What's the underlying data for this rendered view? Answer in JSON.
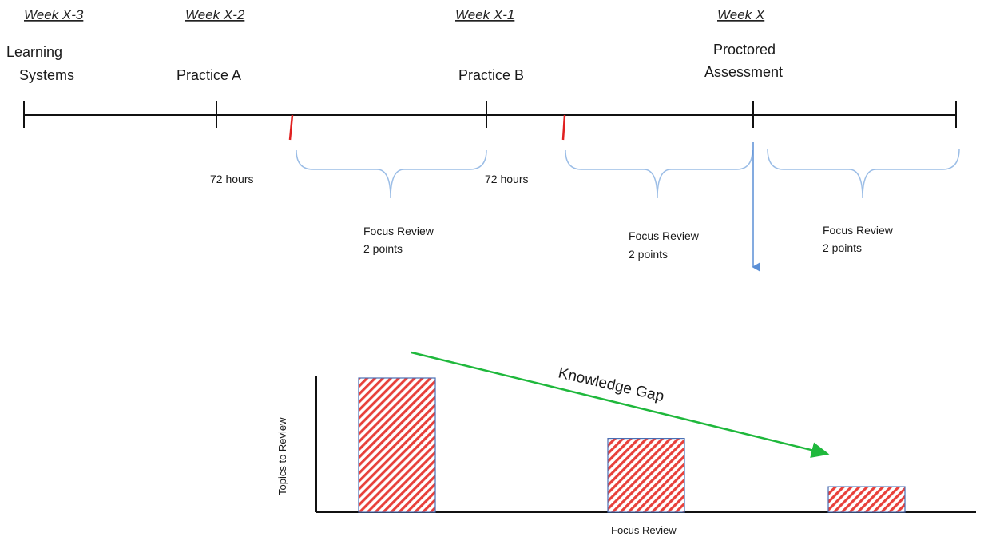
{
  "timeline": {
    "weeks": [
      "Week X-3",
      "Week X-2",
      "Week X-1",
      "Week X"
    ],
    "milestones": [
      {
        "line1": "Learning",
        "line2": "Systems"
      },
      {
        "line1": "Practice A",
        "line2": ""
      },
      {
        "line1": "Practice B",
        "line2": ""
      },
      {
        "line1": "Proctored",
        "line2": "Assessment"
      }
    ],
    "hours": [
      "72 hours",
      "72 hours"
    ],
    "reviews": [
      {
        "line1": "Focus Review",
        "line2": "2 points"
      },
      {
        "line1": "Focus Review",
        "line2": "2 points"
      },
      {
        "line1": "Focus Review",
        "line2": "2 points"
      }
    ]
  },
  "chart": {
    "ylabel": "Topics to Review",
    "xlabel": "Focus Review",
    "trend_label": "Knowledge Gap"
  },
  "chart_data": {
    "type": "bar",
    "categories": [
      "",
      "",
      ""
    ],
    "values": [
      100,
      55,
      19
    ],
    "title": "",
    "xlabel": "Focus Review",
    "ylabel": "Topics to Review",
    "ylim": [
      0,
      100
    ],
    "grid": false,
    "annotations": [
      "Knowledge Gap"
    ],
    "colors": {
      "bar_fill": "#e8403a",
      "bar_edge": "#4a6fb5",
      "trend": "#1fb83c"
    }
  }
}
